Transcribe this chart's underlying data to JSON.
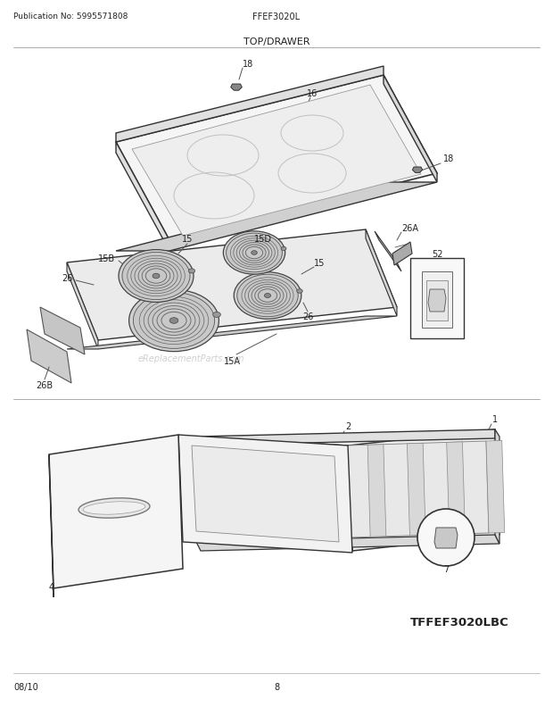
{
  "pub_no": "Publication No: 5995571808",
  "model": "FFEF3020L",
  "section": "TOP/DRAWER",
  "footer_date": "08/10",
  "footer_page": "8",
  "footer_model": "TFFEF3020LBC",
  "bg_color": "#ffffff",
  "line_color": "#333333",
  "figsize": [
    6.2,
    8.03
  ],
  "dpi": 100
}
